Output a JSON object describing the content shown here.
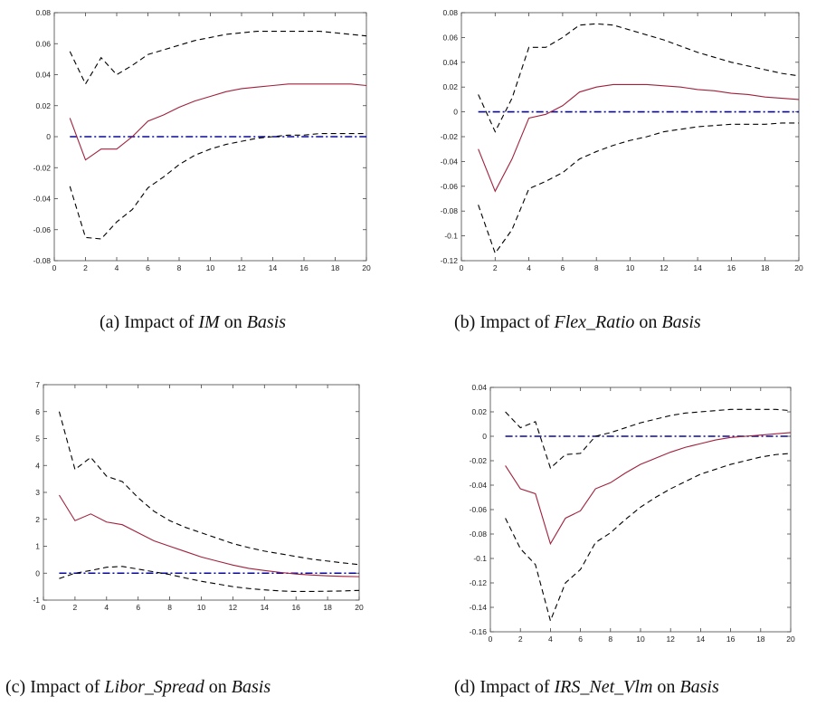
{
  "chart_data": [
    {
      "type": "line",
      "caption": {
        "prefix": "(a) Impact of ",
        "var": "IM",
        "mid": " on ",
        "target": "Basis"
      },
      "xlim": [
        0,
        20
      ],
      "ylim": [
        -0.08,
        0.08
      ],
      "x_ticks": [
        0,
        2,
        4,
        6,
        8,
        10,
        12,
        14,
        16,
        18,
        20
      ],
      "y_ticks": [
        -0.08,
        -0.06,
        -0.04,
        -0.02,
        0,
        0.02,
        0.04,
        0.06,
        0.08
      ],
      "y_tick_labels": [
        "-0.08",
        "-0.06",
        "-0.04",
        "-0.02",
        "0",
        "0.02",
        "0.04",
        "0.06",
        "0.08"
      ],
      "x": [
        1,
        2,
        3,
        4,
        5,
        6,
        7,
        8,
        9,
        10,
        11,
        12,
        13,
        14,
        15,
        16,
        17,
        18,
        19,
        20
      ],
      "series": [
        {
          "role": "upper",
          "color": "#000000",
          "style": "dashed",
          "values": [
            0.055,
            0.034,
            0.051,
            0.04,
            0.046,
            0.053,
            0.056,
            0.059,
            0.062,
            0.064,
            0.066,
            0.067,
            0.068,
            0.068,
            0.068,
            0.068,
            0.068,
            0.067,
            0.066,
            0.065
          ]
        },
        {
          "role": "response",
          "color": "#a0203c",
          "style": "solid",
          "values": [
            0.012,
            -0.015,
            -0.008,
            -0.008,
            0.0,
            0.01,
            0.014,
            0.019,
            0.023,
            0.026,
            0.029,
            0.031,
            0.032,
            0.033,
            0.034,
            0.034,
            0.034,
            0.034,
            0.034,
            0.033
          ]
        },
        {
          "role": "lower",
          "color": "#000000",
          "style": "dashed",
          "values": [
            -0.032,
            -0.065,
            -0.066,
            -0.055,
            -0.047,
            -0.033,
            -0.026,
            -0.018,
            -0.012,
            -0.008,
            -0.005,
            -0.003,
            -0.001,
            0.0,
            0.001,
            0.001,
            0.002,
            0.002,
            0.002,
            0.002
          ]
        },
        {
          "role": "zero",
          "color": "#0a0a9a",
          "style": "dashdot",
          "values": [
            0,
            0,
            0,
            0,
            0,
            0,
            0,
            0,
            0,
            0,
            0,
            0,
            0,
            0,
            0,
            0,
            0,
            0,
            0,
            0
          ]
        }
      ]
    },
    {
      "type": "line",
      "caption": {
        "prefix": "(b) Impact of ",
        "var": "Flex_Ratio",
        "mid": " on ",
        "target": "Basis"
      },
      "xlim": [
        0,
        20
      ],
      "ylim": [
        -0.12,
        0.08
      ],
      "x_ticks": [
        0,
        2,
        4,
        6,
        8,
        10,
        12,
        14,
        16,
        18,
        20
      ],
      "y_ticks": [
        -0.12,
        -0.1,
        -0.08,
        -0.06,
        -0.04,
        -0.02,
        0,
        0.02,
        0.04,
        0.06,
        0.08
      ],
      "y_tick_labels": [
        "-0.12",
        "-0.1",
        "-0.08",
        "-0.06",
        "-0.04",
        "-0.02",
        "0",
        "0.02",
        "0.04",
        "0.06",
        "0.08"
      ],
      "x": [
        1,
        2,
        3,
        4,
        5,
        6,
        7,
        8,
        9,
        10,
        11,
        12,
        13,
        14,
        15,
        16,
        17,
        18,
        19,
        20
      ],
      "series": [
        {
          "role": "upper",
          "color": "#000000",
          "style": "dashed",
          "values": [
            0.014,
            -0.016,
            0.011,
            0.052,
            0.052,
            0.06,
            0.07,
            0.071,
            0.07,
            0.066,
            0.062,
            0.058,
            0.053,
            0.048,
            0.044,
            0.04,
            0.037,
            0.034,
            0.031,
            0.029
          ]
        },
        {
          "role": "response",
          "color": "#a0203c",
          "style": "solid",
          "values": [
            -0.03,
            -0.064,
            -0.038,
            -0.005,
            -0.002,
            0.005,
            0.016,
            0.02,
            0.022,
            0.022,
            0.022,
            0.021,
            0.02,
            0.018,
            0.017,
            0.015,
            0.014,
            0.012,
            0.011,
            0.01
          ]
        },
        {
          "role": "lower",
          "color": "#000000",
          "style": "dashed",
          "values": [
            -0.075,
            -0.114,
            -0.095,
            -0.062,
            -0.056,
            -0.049,
            -0.038,
            -0.032,
            -0.027,
            -0.023,
            -0.02,
            -0.016,
            -0.014,
            -0.012,
            -0.011,
            -0.01,
            -0.01,
            -0.01,
            -0.009,
            -0.009
          ]
        },
        {
          "role": "zero",
          "color": "#0a0a9a",
          "style": "dashdot",
          "values": [
            0,
            0,
            0,
            0,
            0,
            0,
            0,
            0,
            0,
            0,
            0,
            0,
            0,
            0,
            0,
            0,
            0,
            0,
            0,
            0
          ]
        }
      ]
    },
    {
      "type": "line",
      "caption": {
        "prefix": "(c) Impact of ",
        "var": "Libor_Spread",
        "mid": " on ",
        "target": "Basis"
      },
      "xlim": [
        0,
        20
      ],
      "ylim": [
        -1,
        7
      ],
      "x_ticks": [
        0,
        2,
        4,
        6,
        8,
        10,
        12,
        14,
        16,
        18,
        20
      ],
      "y_ticks": [
        -1,
        0,
        1,
        2,
        3,
        4,
        5,
        6,
        7
      ],
      "y_tick_labels": [
        "-1",
        "0",
        "1",
        "2",
        "3",
        "4",
        "5",
        "6",
        "7"
      ],
      "x": [
        1,
        2,
        3,
        4,
        5,
        6,
        7,
        8,
        9,
        10,
        11,
        12,
        13,
        14,
        15,
        16,
        17,
        18,
        19,
        20
      ],
      "series": [
        {
          "role": "upper",
          "color": "#000000",
          "style": "dashed",
          "values": [
            6.0,
            3.85,
            4.3,
            3.6,
            3.4,
            2.8,
            2.3,
            1.95,
            1.7,
            1.5,
            1.3,
            1.1,
            0.95,
            0.82,
            0.72,
            0.62,
            0.52,
            0.45,
            0.38,
            0.32
          ]
        },
        {
          "role": "response",
          "color": "#a0203c",
          "style": "solid",
          "values": [
            2.9,
            1.95,
            2.2,
            1.9,
            1.8,
            1.5,
            1.2,
            1.0,
            0.8,
            0.6,
            0.45,
            0.3,
            0.18,
            0.1,
            0.03,
            -0.03,
            -0.07,
            -0.1,
            -0.12,
            -0.13
          ]
        },
        {
          "role": "lower",
          "color": "#000000",
          "style": "dashed",
          "values": [
            -0.2,
            0.0,
            0.1,
            0.22,
            0.25,
            0.15,
            0.05,
            -0.05,
            -0.18,
            -0.3,
            -0.4,
            -0.5,
            -0.57,
            -0.62,
            -0.66,
            -0.68,
            -0.68,
            -0.67,
            -0.66,
            -0.64
          ]
        },
        {
          "role": "zero",
          "color": "#0a0a9a",
          "style": "dashdot",
          "values": [
            0,
            0,
            0,
            0,
            0,
            0,
            0,
            0,
            0,
            0,
            0,
            0,
            0,
            0,
            0,
            0,
            0,
            0,
            0,
            0
          ]
        }
      ]
    },
    {
      "type": "line",
      "caption": {
        "prefix": "(d) Impact of ",
        "var": "IRS_Net_Vlm",
        "mid": " on ",
        "target": "Basis"
      },
      "xlim": [
        0,
        20
      ],
      "ylim": [
        -0.16,
        0.04
      ],
      "x_ticks": [
        0,
        2,
        4,
        6,
        8,
        10,
        12,
        14,
        16,
        18,
        20
      ],
      "y_ticks": [
        -0.16,
        -0.14,
        -0.12,
        -0.1,
        -0.08,
        -0.06,
        -0.04,
        -0.02,
        0,
        0.02,
        0.04
      ],
      "y_tick_labels": [
        "-0.16",
        "-0.14",
        "-0.12",
        "-0.1",
        "-0.08",
        "-0.06",
        "-0.04",
        "-0.02",
        "0",
        "0.02",
        "0.04"
      ],
      "x": [
        1,
        2,
        3,
        4,
        5,
        6,
        7,
        8,
        9,
        10,
        11,
        12,
        13,
        14,
        15,
        16,
        17,
        18,
        19,
        20
      ],
      "series": [
        {
          "role": "upper",
          "color": "#000000",
          "style": "dashed",
          "values": [
            0.02,
            0.007,
            0.012,
            -0.026,
            -0.015,
            -0.014,
            0.0,
            0.003,
            0.007,
            0.011,
            0.014,
            0.017,
            0.019,
            0.02,
            0.021,
            0.022,
            0.022,
            0.022,
            0.022,
            0.021
          ]
        },
        {
          "role": "response",
          "color": "#a0203c",
          "style": "solid",
          "values": [
            -0.024,
            -0.043,
            -0.047,
            -0.088,
            -0.067,
            -0.061,
            -0.043,
            -0.038,
            -0.03,
            -0.023,
            -0.018,
            -0.013,
            -0.009,
            -0.006,
            -0.003,
            -0.001,
            0.0,
            0.001,
            0.002,
            0.003
          ]
        },
        {
          "role": "lower",
          "color": "#000000",
          "style": "dashed",
          "values": [
            -0.067,
            -0.092,
            -0.105,
            -0.151,
            -0.12,
            -0.109,
            -0.087,
            -0.079,
            -0.068,
            -0.058,
            -0.05,
            -0.043,
            -0.037,
            -0.031,
            -0.027,
            -0.023,
            -0.02,
            -0.017,
            -0.015,
            -0.014
          ]
        },
        {
          "role": "zero",
          "color": "#0a0a9a",
          "style": "dashdot",
          "values": [
            0,
            0,
            0,
            0,
            0,
            0,
            0,
            0,
            0,
            0,
            0,
            0,
            0,
            0,
            0,
            0,
            0,
            0,
            0,
            0
          ]
        }
      ]
    }
  ]
}
